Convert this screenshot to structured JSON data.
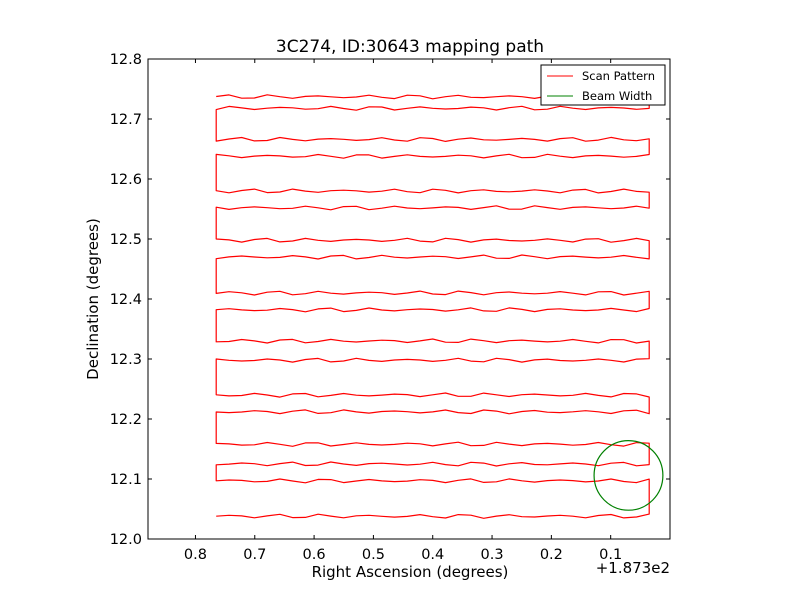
{
  "chart_data": {
    "type": "line",
    "title": "3C274, ID:30643 mapping path",
    "xlabel": "Right Ascension (degrees)",
    "ylabel": "Declination (degrees)",
    "x_offset_label": "+1.873e2",
    "x_axis_inverted": true,
    "xlim": [
      0.88,
      0.0
    ],
    "ylim": [
      12.0,
      12.8
    ],
    "x_ticks": [
      0.8,
      0.7,
      0.6,
      0.5,
      0.4,
      0.3,
      0.2,
      0.1
    ],
    "x_tick_labels": [
      "0.8",
      "0.7",
      "0.6",
      "0.5",
      "0.4",
      "0.3",
      "0.2",
      "0.1"
    ],
    "y_ticks": [
      12.0,
      12.1,
      12.2,
      12.3,
      12.4,
      12.5,
      12.6,
      12.7,
      12.8
    ],
    "y_tick_labels": [
      "12.0",
      "12.1",
      "12.2",
      "12.3",
      "12.4",
      "12.5",
      "12.6",
      "12.7",
      "12.8"
    ],
    "grid": false,
    "legend_position": "top-right",
    "legend": [
      {
        "label": "Scan Pattern",
        "color": "#ff0000"
      },
      {
        "label": "Beam Width",
        "color": "#008000"
      }
    ],
    "scan_rows_dec": [
      12.038,
      12.097,
      12.125,
      12.158,
      12.212,
      12.24,
      12.298,
      12.33,
      12.382,
      12.41,
      12.47,
      12.498,
      12.552,
      12.58,
      12.638,
      12.666,
      12.718,
      12.737
    ],
    "scan_ra_range": [
      0.035,
      0.765
    ],
    "beam": {
      "ra_center": 0.07,
      "dec_center": 12.106,
      "radius": 0.058
    }
  }
}
